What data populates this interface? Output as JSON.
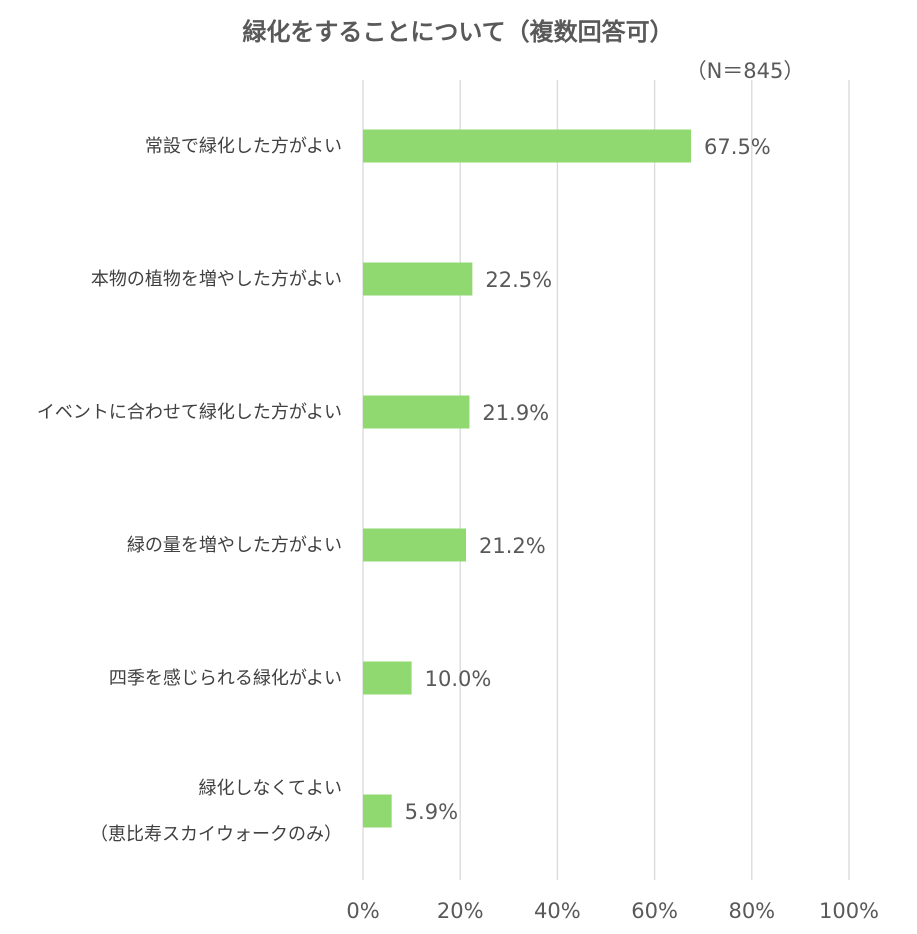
{
  "chart_data": {
    "type": "bar",
    "orientation": "horizontal",
    "title": "緑化をすることについて（複数回答可）",
    "subtitle": "（N＝845）",
    "categories": [
      [
        "常設で緑化した方がよい"
      ],
      [
        "本物の植物を増やした方がよい"
      ],
      [
        "イベントに合わせて緑化した方がよい"
      ],
      [
        "緑の量を増やした方がよい"
      ],
      [
        "四季を感じられる緑化がよい"
      ],
      [
        "緑化しなくてよい",
        "（恵比寿スカイウォークのみ）"
      ]
    ],
    "values": [
      67.5,
      22.5,
      21.9,
      21.2,
      10.0,
      5.9
    ],
    "data_labels": [
      "67.5%",
      "22.5%",
      "21.9%",
      "21.2%",
      "10.0%",
      "5.9%"
    ],
    "xlim": [
      0,
      100
    ],
    "x_ticks": [
      0,
      20,
      40,
      60,
      80,
      100
    ],
    "x_tick_labels": [
      "0%",
      "20%",
      "40%",
      "60%",
      "80%",
      "100%"
    ],
    "grid": true,
    "bar_color": "#8fd970",
    "grid_color": "#d9d9d9"
  }
}
